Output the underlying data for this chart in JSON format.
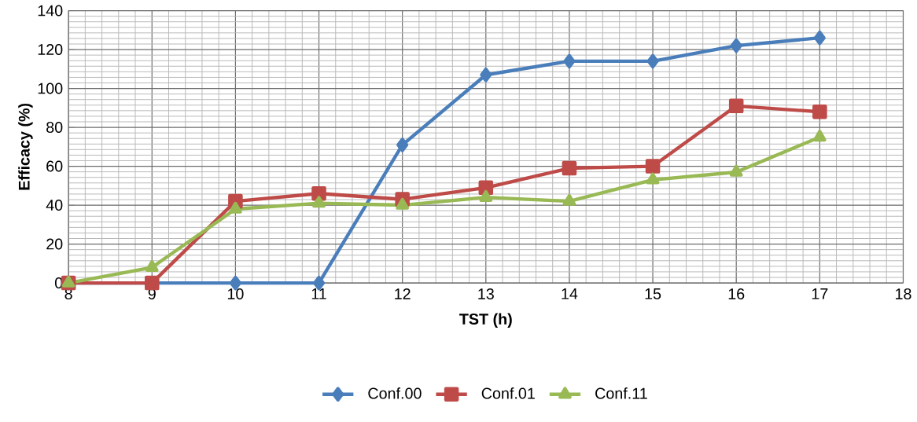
{
  "chart_data": {
    "type": "line",
    "xlabel": "TST (h)",
    "ylabel": "Efficacy (%)",
    "x": [
      8,
      9,
      10,
      11,
      12,
      13,
      14,
      15,
      16,
      17
    ],
    "series": [
      {
        "name": "Conf.00",
        "color": "#4a7ebb",
        "marker": "diamond",
        "values": [
          0,
          0,
          0,
          0,
          71,
          107,
          114,
          114,
          122,
          126
        ]
      },
      {
        "name": "Conf.01",
        "color": "#be4b48",
        "marker": "square",
        "values": [
          0,
          0,
          42,
          46,
          43,
          49,
          59,
          60,
          91,
          88
        ]
      },
      {
        "name": "Conf.11",
        "color": "#98b954",
        "marker": "triangle",
        "values": [
          0,
          8,
          38,
          41,
          40,
          44,
          42,
          53,
          57,
          75
        ]
      }
    ],
    "xlim": [
      8,
      18
    ],
    "ylim": [
      0,
      140
    ],
    "xticks": [
      8,
      9,
      10,
      11,
      12,
      13,
      14,
      15,
      16,
      17,
      18
    ],
    "yticks": [
      0,
      20,
      40,
      60,
      80,
      100,
      120,
      140
    ],
    "grid": true,
    "legend": "bottom",
    "line_style": "solid"
  }
}
